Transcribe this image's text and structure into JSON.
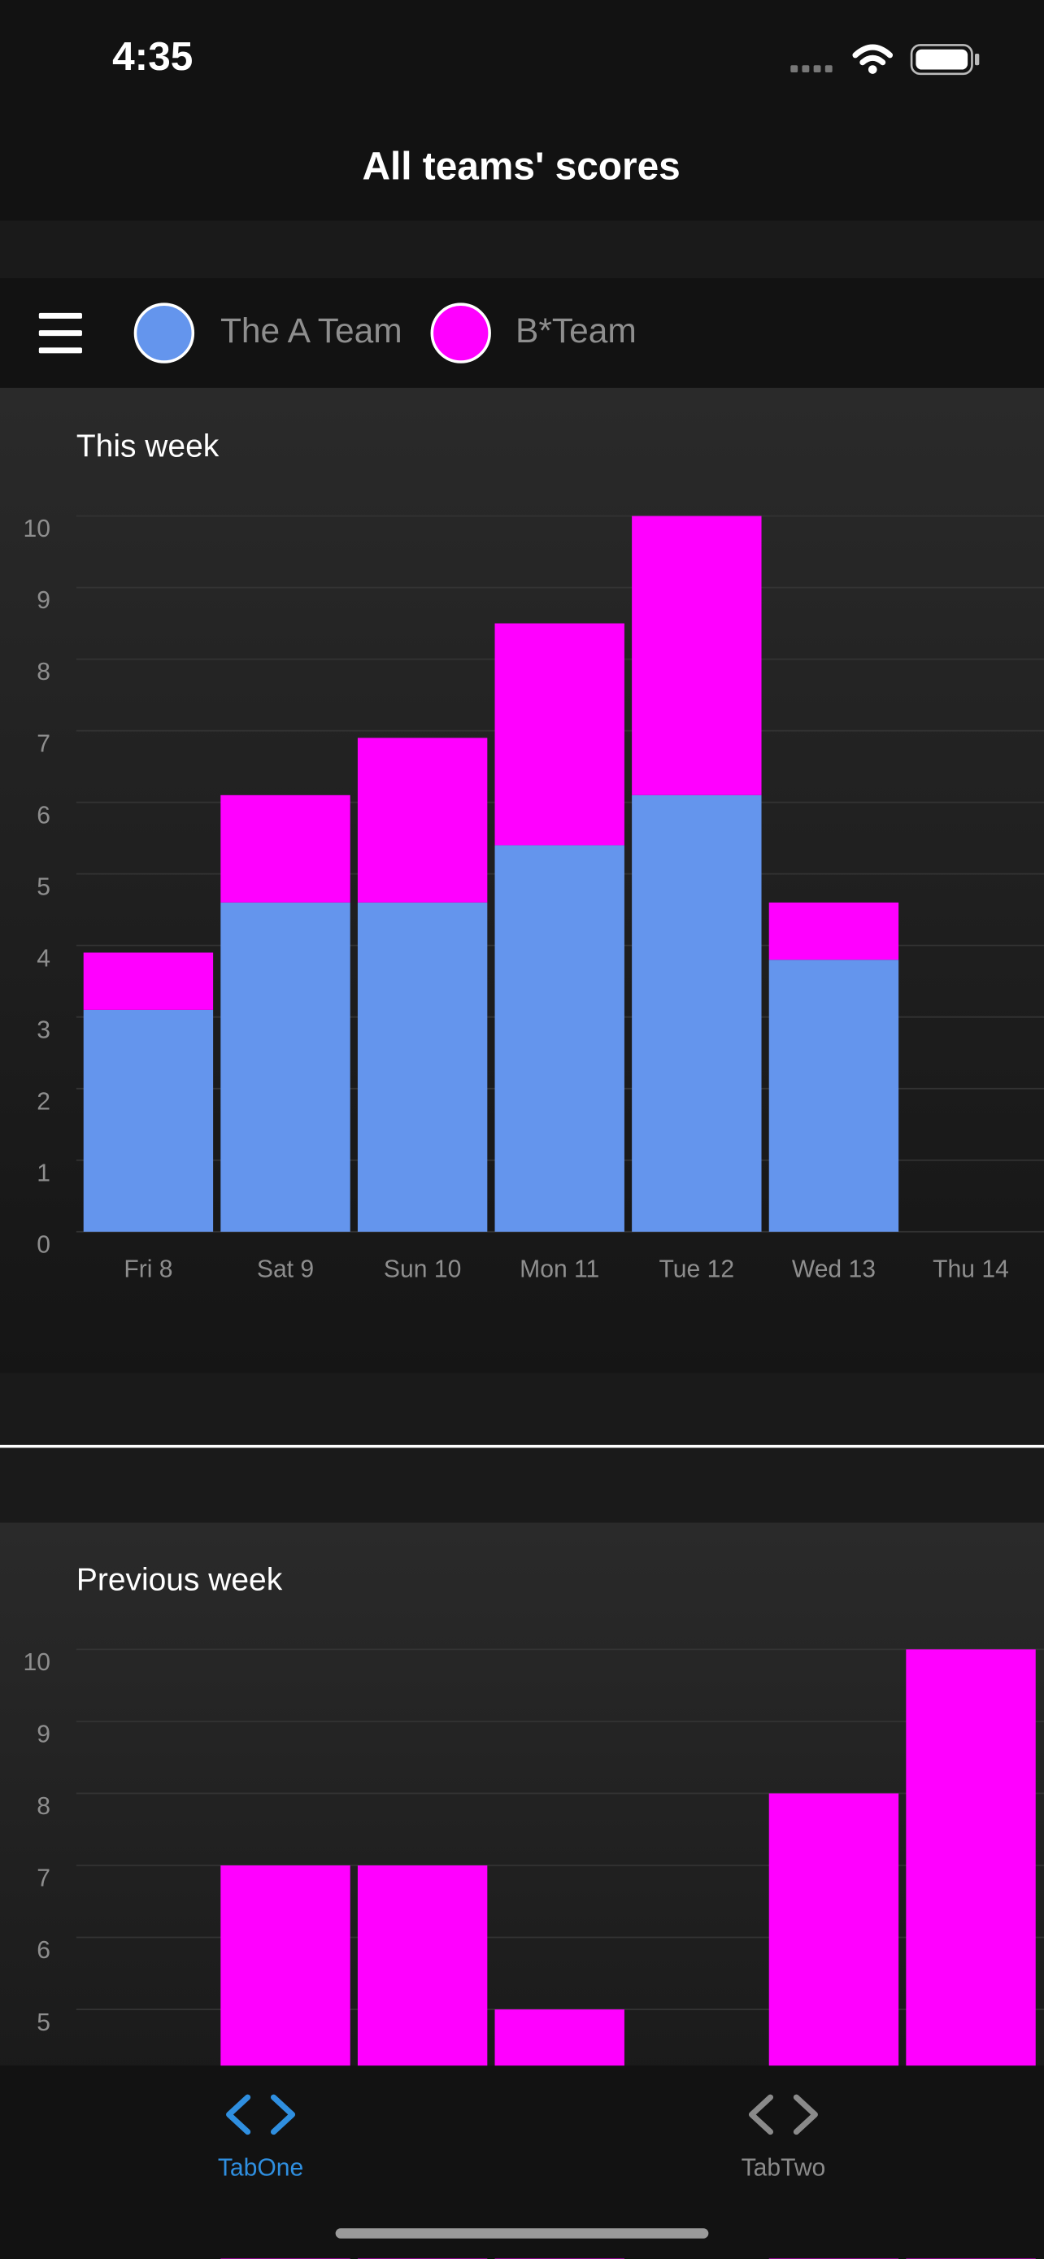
{
  "status_bar": {
    "time": "4:35"
  },
  "nav": {
    "title": "All teams' scores"
  },
  "chart_data": [
    {
      "type": "bar",
      "stacked": true,
      "title": "This week",
      "categories": [
        "Fri 8",
        "Sat 9",
        "Sun 10",
        "Mon 11",
        "Tue 12",
        "Wed 13",
        "Thu 14"
      ],
      "series": [
        {
          "name": "The A Team",
          "color": "#6495ED",
          "values": [
            3.1,
            4.6,
            4.6,
            5.4,
            6.1,
            3.8,
            0
          ]
        },
        {
          "name": "B*Team",
          "color": "#FF00FF",
          "values": [
            0.8,
            1.5,
            2.3,
            3.1,
            3.9,
            0.8,
            0
          ]
        }
      ],
      "ylim": [
        0,
        10
      ],
      "yticks": [
        0,
        1,
        2,
        3,
        4,
        5,
        6,
        7,
        8,
        9,
        10
      ],
      "grid": true
    },
    {
      "type": "bar",
      "stacked": true,
      "title": "Previous week",
      "categories": [
        null,
        null,
        null,
        null,
        null,
        null,
        null
      ],
      "series": [
        {
          "color": "#FF00FF",
          "values": [
            null,
            7,
            7,
            5,
            null,
            8,
            10
          ]
        }
      ],
      "ylim": [
        0,
        10
      ],
      "yticks": [
        5,
        6,
        7,
        8,
        9,
        10
      ],
      "grid": true
    }
  ],
  "tabs": [
    {
      "label": "TabOne",
      "active": true
    },
    {
      "label": "TabTwo",
      "active": false
    }
  ]
}
